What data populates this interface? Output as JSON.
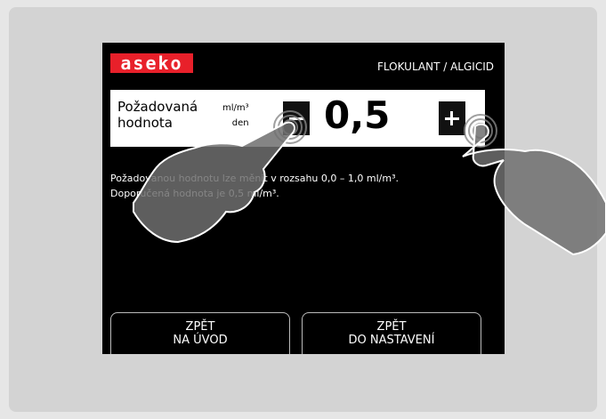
{
  "header": {
    "logo": "aseko",
    "title": "FLOKULANT / ALGICID"
  },
  "setting": {
    "label": [
      "Požadovaná",
      "hodnota"
    ],
    "unit": [
      "ml/m³",
      "den"
    ],
    "value": "0,5"
  },
  "info": [
    "Požadovanou hodnotu lze měnit v rozsahu 0,0 – 1,0 ml/m³.",
    "Doporučená hodnota je 0,5 ml/m³."
  ],
  "buttons": [
    {
      "lines": [
        "ZPĚT",
        "NA ÚVOD"
      ]
    },
    {
      "lines": [
        "ZPĚT",
        "DO NASTAVENÍ"
      ]
    }
  ]
}
